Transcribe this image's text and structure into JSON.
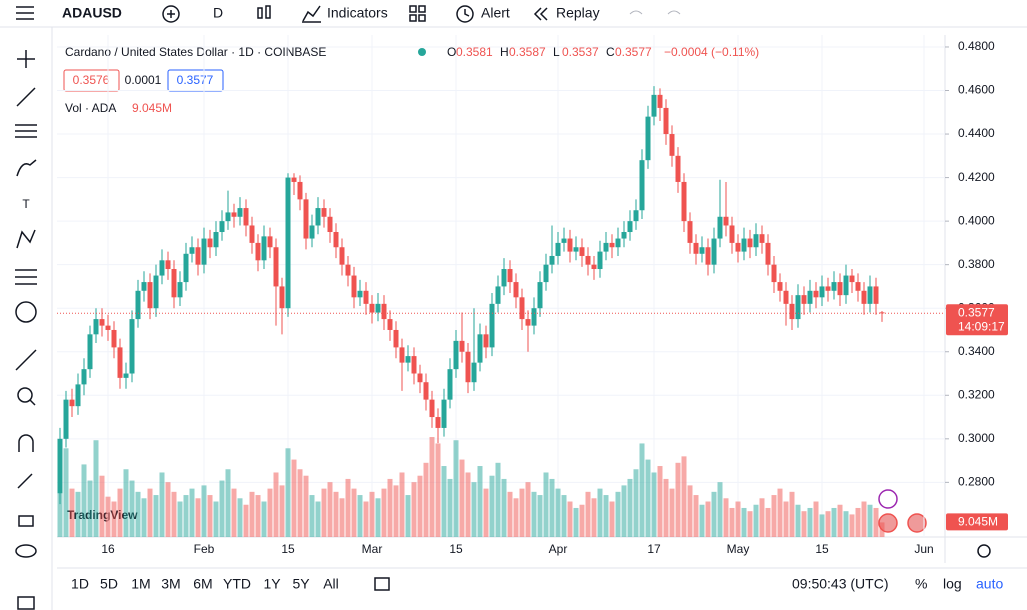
{
  "toolbar": {
    "symbol": "ADAUSD",
    "interval": "D",
    "indicators": "Indicators",
    "alert": "Alert",
    "replay": "Replay"
  },
  "chart_data": {
    "type": "candlestick",
    "title": "Cardano / United States Dollar · 1D · COINBASE",
    "ohlc_letters": [
      "O",
      "H",
      "L",
      "C"
    ],
    "last_labels": [
      "0.3581",
      "0.3587",
      "0.3537",
      "0.3577"
    ],
    "change_label": "−0.0004 (−0.11%)",
    "bid": "0.3576",
    "spread": "0.0001",
    "ask": "0.3577",
    "volume_title": "Vol · ADA",
    "volume_last_label": "9.045M",
    "last_price_label": "0.3577",
    "countdown": "14:09:17",
    "up_color": "#26a69a",
    "down_color": "#ef5350",
    "open": [
      0.275,
      0.3,
      0.318,
      0.315,
      0.325,
      0.332,
      0.348,
      0.355,
      0.352,
      0.35,
      0.342,
      0.328,
      0.33,
      0.355,
      0.368,
      0.372,
      0.36,
      0.375,
      0.382,
      0.378,
      0.365,
      0.372,
      0.385,
      0.388,
      0.38,
      0.392,
      0.388,
      0.395,
      0.4,
      0.404,
      0.402,
      0.406,
      0.398,
      0.39,
      0.382,
      0.393,
      0.388,
      0.37,
      0.36,
      0.42,
      0.418,
      0.41,
      0.392,
      0.398,
      0.406,
      0.402,
      0.395,
      0.388,
      0.38,
      0.375,
      0.365,
      0.368,
      0.362,
      0.358,
      0.362,
      0.355,
      0.35,
      0.342,
      0.335,
      0.338,
      0.33,
      0.326,
      0.318,
      0.31,
      0.305,
      0.318,
      0.332,
      0.345,
      0.34,
      0.326,
      0.335,
      0.348,
      0.342,
      0.362,
      0.37,
      0.378,
      0.372,
      0.365,
      0.355,
      0.352,
      0.36,
      0.372,
      0.38,
      0.384,
      0.39,
      0.392,
      0.386,
      0.388,
      0.384,
      0.38,
      0.378,
      0.386,
      0.39,
      0.388,
      0.392,
      0.395,
      0.4,
      0.405,
      0.428,
      0.448,
      0.458,
      0.452,
      0.44,
      0.43,
      0.418,
      0.4,
      0.39,
      0.385,
      0.388,
      0.38,
      0.392,
      0.402,
      0.398,
      0.39,
      0.386,
      0.392,
      0.388,
      0.394,
      0.39,
      0.38,
      0.372,
      0.368,
      0.362,
      0.355,
      0.366,
      0.362,
      0.368,
      0.365,
      0.37,
      0.368,
      0.372,
      0.366,
      0.375,
      0.372,
      0.368,
      0.362,
      0.37,
      0.3581
    ],
    "high": [
      0.305,
      0.322,
      0.323,
      0.33,
      0.337,
      0.352,
      0.36,
      0.36,
      0.357,
      0.354,
      0.346,
      0.335,
      0.359,
      0.373,
      0.377,
      0.376,
      0.38,
      0.387,
      0.386,
      0.382,
      0.377,
      0.39,
      0.393,
      0.392,
      0.397,
      0.396,
      0.4,
      0.405,
      0.414,
      0.408,
      0.411,
      0.41,
      0.402,
      0.394,
      0.398,
      0.397,
      0.392,
      0.374,
      0.422,
      0.422,
      0.421,
      0.413,
      0.403,
      0.411,
      0.41,
      0.406,
      0.399,
      0.392,
      0.384,
      0.379,
      0.373,
      0.372,
      0.366,
      0.367,
      0.366,
      0.359,
      0.354,
      0.346,
      0.343,
      0.342,
      0.334,
      0.33,
      0.322,
      0.314,
      0.323,
      0.337,
      0.35,
      0.358,
      0.344,
      0.36,
      0.353,
      0.352,
      0.367,
      0.375,
      0.383,
      0.382,
      0.376,
      0.369,
      0.359,
      0.365,
      0.377,
      0.385,
      0.398,
      0.395,
      0.397,
      0.396,
      0.393,
      0.392,
      0.388,
      0.384,
      0.391,
      0.395,
      0.394,
      0.397,
      0.4,
      0.405,
      0.41,
      0.433,
      0.453,
      0.462,
      0.461,
      0.456,
      0.444,
      0.434,
      0.422,
      0.404,
      0.394,
      0.393,
      0.392,
      0.397,
      0.419,
      0.418,
      0.402,
      0.394,
      0.397,
      0.396,
      0.399,
      0.398,
      0.394,
      0.384,
      0.376,
      0.372,
      0.366,
      0.371,
      0.37,
      0.373,
      0.372,
      0.375,
      0.374,
      0.377,
      0.376,
      0.38,
      0.378,
      0.376,
      0.372,
      0.375,
      0.374,
      0.3587
    ],
    "low": [
      0.27,
      0.296,
      0.31,
      0.311,
      0.32,
      0.328,
      0.344,
      0.347,
      0.345,
      0.337,
      0.323,
      0.323,
      0.326,
      0.351,
      0.363,
      0.355,
      0.356,
      0.371,
      0.373,
      0.36,
      0.361,
      0.368,
      0.381,
      0.375,
      0.376,
      0.383,
      0.384,
      0.391,
      0.396,
      0.397,
      0.398,
      0.393,
      0.385,
      0.377,
      0.378,
      0.383,
      0.352,
      0.348,
      0.356,
      0.412,
      0.405,
      0.387,
      0.388,
      0.394,
      0.397,
      0.39,
      0.383,
      0.375,
      0.37,
      0.36,
      0.361,
      0.357,
      0.353,
      0.354,
      0.35,
      0.345,
      0.337,
      0.322,
      0.331,
      0.325,
      0.321,
      0.313,
      0.305,
      0.298,
      0.301,
      0.314,
      0.328,
      0.335,
      0.321,
      0.322,
      0.331,
      0.337,
      0.338,
      0.358,
      0.366,
      0.367,
      0.36,
      0.35,
      0.34,
      0.348,
      0.356,
      0.368,
      0.376,
      0.38,
      0.386,
      0.381,
      0.382,
      0.379,
      0.375,
      0.373,
      0.374,
      0.382,
      0.383,
      0.384,
      0.388,
      0.391,
      0.396,
      0.401,
      0.424,
      0.444,
      0.446,
      0.435,
      0.425,
      0.413,
      0.395,
      0.385,
      0.38,
      0.381,
      0.375,
      0.376,
      0.388,
      0.393,
      0.385,
      0.381,
      0.382,
      0.383,
      0.384,
      0.385,
      0.375,
      0.367,
      0.363,
      0.352,
      0.35,
      0.351,
      0.357,
      0.358,
      0.36,
      0.361,
      0.363,
      0.364,
      0.361,
      0.362,
      0.367,
      0.363,
      0.357,
      0.358,
      0.357,
      0.3537
    ],
    "close": [
      0.3,
      0.318,
      0.315,
      0.325,
      0.332,
      0.348,
      0.355,
      0.352,
      0.35,
      0.342,
      0.328,
      0.33,
      0.355,
      0.368,
      0.372,
      0.36,
      0.375,
      0.382,
      0.378,
      0.365,
      0.372,
      0.385,
      0.388,
      0.38,
      0.392,
      0.388,
      0.395,
      0.4,
      0.404,
      0.402,
      0.406,
      0.398,
      0.39,
      0.382,
      0.393,
      0.388,
      0.37,
      0.36,
      0.42,
      0.418,
      0.41,
      0.392,
      0.398,
      0.406,
      0.402,
      0.395,
      0.388,
      0.38,
      0.375,
      0.365,
      0.368,
      0.362,
      0.358,
      0.362,
      0.355,
      0.35,
      0.342,
      0.335,
      0.338,
      0.33,
      0.326,
      0.318,
      0.31,
      0.305,
      0.318,
      0.332,
      0.345,
      0.34,
      0.326,
      0.335,
      0.348,
      0.342,
      0.362,
      0.37,
      0.378,
      0.372,
      0.365,
      0.355,
      0.352,
      0.36,
      0.372,
      0.38,
      0.384,
      0.39,
      0.392,
      0.386,
      0.388,
      0.384,
      0.38,
      0.378,
      0.386,
      0.39,
      0.388,
      0.392,
      0.395,
      0.4,
      0.405,
      0.428,
      0.448,
      0.458,
      0.452,
      0.44,
      0.43,
      0.418,
      0.4,
      0.39,
      0.385,
      0.388,
      0.38,
      0.392,
      0.402,
      0.398,
      0.39,
      0.386,
      0.392,
      0.388,
      0.394,
      0.39,
      0.38,
      0.372,
      0.368,
      0.362,
      0.355,
      0.366,
      0.362,
      0.368,
      0.365,
      0.37,
      0.368,
      0.372,
      0.366,
      0.375,
      0.372,
      0.368,
      0.362,
      0.37,
      0.362,
      0.3577
    ],
    "volume": [
      40,
      55,
      30,
      28,
      45,
      35,
      60,
      38,
      25,
      22,
      30,
      42,
      35,
      28,
      24,
      30,
      26,
      40,
      34,
      28,
      22,
      26,
      30,
      24,
      32,
      26,
      22,
      35,
      42,
      30,
      24,
      20,
      28,
      26,
      22,
      30,
      40,
      32,
      55,
      48,
      42,
      38,
      26,
      22,
      30,
      34,
      28,
      24,
      36,
      30,
      26,
      22,
      28,
      24,
      30,
      36,
      32,
      40,
      26,
      34,
      38,
      46,
      62,
      58,
      44,
      36,
      60,
      48,
      40,
      34,
      44,
      30,
      38,
      46,
      36,
      28,
      24,
      30,
      34,
      28,
      26,
      40,
      36,
      30,
      26,
      22,
      18,
      20,
      28,
      24,
      30,
      26,
      22,
      28,
      32,
      36,
      42,
      58,
      48,
      40,
      44,
      36,
      30,
      46,
      50,
      32,
      26,
      20,
      22,
      28,
      34,
      24,
      18,
      22,
      18,
      16,
      20,
      24,
      18,
      26,
      30,
      22,
      28,
      20,
      16,
      18,
      22,
      14,
      16,
      18,
      20,
      16,
      14,
      18,
      22,
      20,
      18,
      9.045
    ],
    "xlim": [
      -0.5,
      147.5
    ],
    "xticks": [
      {
        "value": 8,
        "label": "16"
      },
      {
        "value": 24,
        "label": "Feb"
      },
      {
        "value": 38,
        "label": "15"
      },
      {
        "value": 52,
        "label": "Mar"
      },
      {
        "value": 66,
        "label": "15"
      },
      {
        "value": 83,
        "label": "Apr"
      },
      {
        "value": 99,
        "label": "17"
      },
      {
        "value": 113,
        "label": "May"
      },
      {
        "value": 127,
        "label": "15"
      },
      {
        "value": 144,
        "label": "Jun"
      }
    ],
    "ylim": [
      0.2549,
      0.4855
    ],
    "yticks": [
      {
        "value": 0.28,
        "label": "0.2800"
      },
      {
        "value": 0.3,
        "label": "0.3000"
      },
      {
        "value": 0.32,
        "label": "0.3200"
      },
      {
        "value": 0.34,
        "label": "0.3400"
      },
      {
        "value": 0.36,
        "label": "0.3600"
      },
      {
        "value": 0.38,
        "label": "0.3800"
      },
      {
        "value": 0.4,
        "label": "0.4000"
      },
      {
        "value": 0.42,
        "label": "0.4200"
      },
      {
        "value": 0.44,
        "label": "0.4400"
      },
      {
        "value": 0.46,
        "label": "0.4600"
      },
      {
        "value": 0.48,
        "label": "0.4800"
      }
    ],
    "grid": true
  },
  "branding": "TradingView",
  "bottom_bar": {
    "ranges": [
      "1D",
      "5D",
      "1M",
      "3M",
      "6M",
      "YTD",
      "1Y",
      "5Y",
      "All"
    ],
    "clock": "09:50:43 (UTC)",
    "percent": "%",
    "log": "log",
    "auto": "auto"
  }
}
